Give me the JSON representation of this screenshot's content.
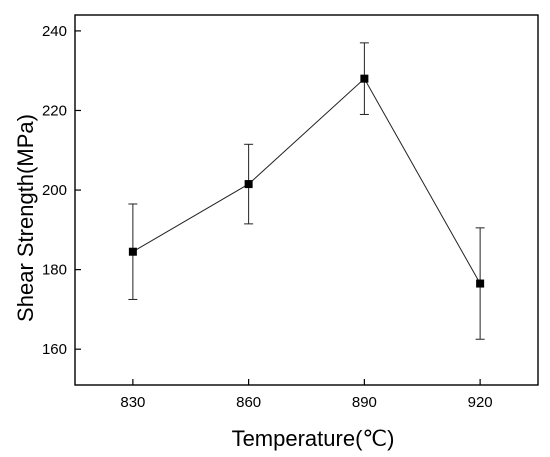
{
  "chart_data": {
    "type": "line",
    "title": "",
    "xlabel": "Temperature(℃)",
    "ylabel": "Shear Strength(MPa)",
    "x": [
      830,
      860,
      890,
      920
    ],
    "x_ticks": [
      830,
      860,
      890,
      920
    ],
    "xlim": [
      815,
      935
    ],
    "y_ticks": [
      160,
      180,
      200,
      220,
      240
    ],
    "ylim": [
      151,
      244
    ],
    "grid": false,
    "legend": "none",
    "series": [
      {
        "values": [
          184.5,
          201.5,
          228,
          176.5
        ],
        "err_upper": [
          196.5,
          211.5,
          237,
          190.5
        ],
        "err_lower": [
          172.5,
          191.5,
          219,
          162.5
        ],
        "marker": "square",
        "color": "#000000"
      }
    ]
  }
}
